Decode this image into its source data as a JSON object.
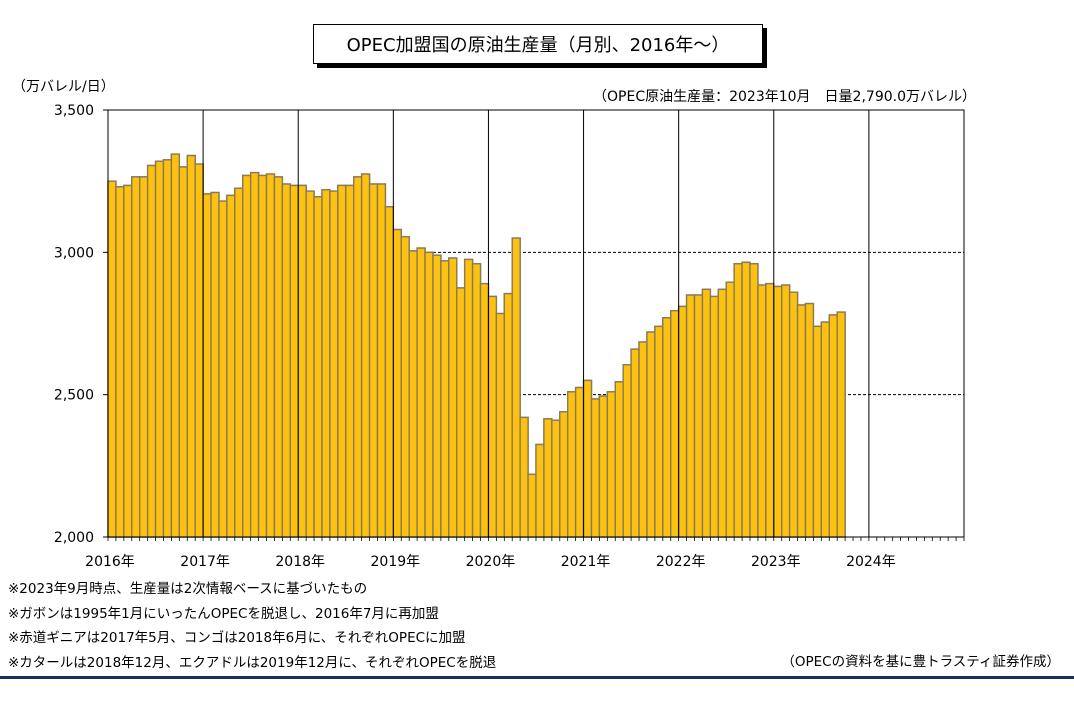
{
  "title": "OPEC加盟国の原油生産量（月別、2016年～）",
  "unit_label": "（万バレル/日）",
  "latest_note": "（OPEC原油生産量：2023年10月　日量2,790.0万バレル）",
  "notes": [
    "※2023年9月時点、生産量は2次情報ベースに基づいたもの",
    "※ガボンは1995年1月にいったんOPECを脱退し、2016年7月に再加盟",
    "※赤道ギニアは2017年5月、コンゴは2018年6月に、それぞれOPECに加盟",
    "※カタールは2018年12月、エクアドルは2019年12月に、それぞれOPECを脱退"
  ],
  "source": "（OPECの資料を基に豊トラスティ証券作成）",
  "colors": {
    "bar_fill": "#FDC10F",
    "bar_edge": "#8A7A5A",
    "frame": "#000000"
  },
  "chart_data": {
    "type": "bar",
    "title": "OPEC加盟国の原油生産量（月別、2016年～）",
    "ylabel": "（万バレル/日）",
    "ylim": [
      2000,
      3500
    ],
    "yticks": [
      2000,
      2500,
      3000,
      3500
    ],
    "ytick_labels": [
      "2,000",
      "2,500",
      "3,000",
      "3,500"
    ],
    "xtick_labels": [
      "2016年",
      "2017年",
      "2018年",
      "2019年",
      "2020年",
      "2021年",
      "2022年",
      "2023年",
      "2024年"
    ],
    "reference_lines": [
      3000,
      2500
    ],
    "start": "2016-01",
    "months_shown": 108,
    "values": [
      3250,
      3230,
      3235,
      3265,
      3265,
      3305,
      3320,
      3325,
      3345,
      3300,
      3340,
      3310,
      3205,
      3210,
      3180,
      3200,
      3225,
      3270,
      3280,
      3270,
      3275,
      3265,
      3240,
      3235,
      3235,
      3215,
      3195,
      3220,
      3215,
      3235,
      3235,
      3265,
      3275,
      3240,
      3240,
      3160,
      3080,
      3055,
      3005,
      3015,
      3000,
      2990,
      2970,
      2980,
      2875,
      2975,
      2960,
      2890,
      2845,
      2785,
      2855,
      3050,
      2420,
      2220,
      2325,
      2415,
      2410,
      2440,
      2510,
      2525,
      2550,
      2485,
      2495,
      2510,
      2545,
      2605,
      2660,
      2685,
      2720,
      2740,
      2770,
      2795,
      2810,
      2850,
      2850,
      2870,
      2845,
      2870,
      2895,
      2960,
      2965,
      2960,
      2885,
      2890,
      2880,
      2885,
      2860,
      2815,
      2820,
      2740,
      2755,
      2780,
      2790
    ]
  }
}
